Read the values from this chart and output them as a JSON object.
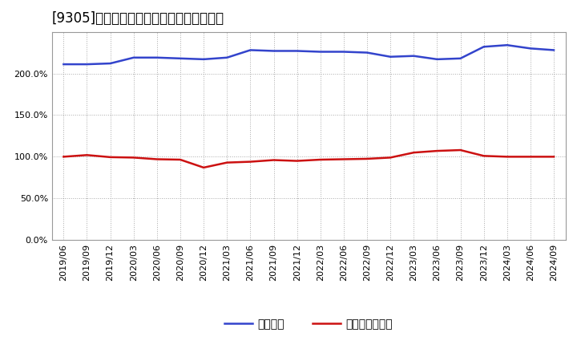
{
  "title": "[9305]　固定比率、固定長期適合率の推移",
  "x_labels": [
    "2019/06",
    "2019/09",
    "2019/12",
    "2020/03",
    "2020/06",
    "2020/09",
    "2020/12",
    "2021/03",
    "2021/06",
    "2021/09",
    "2021/12",
    "2022/03",
    "2022/06",
    "2022/09",
    "2022/12",
    "2023/03",
    "2023/06",
    "2023/09",
    "2023/12",
    "2024/03",
    "2024/06",
    "2024/09"
  ],
  "fixed_ratio": [
    211.0,
    211.0,
    212.0,
    219.0,
    219.0,
    218.0,
    217.0,
    219.0,
    228.0,
    227.0,
    227.0,
    226.0,
    226.0,
    225.0,
    220.0,
    221.0,
    217.0,
    218.0,
    232.0,
    234.0,
    230.0,
    228.0
  ],
  "fixed_long_ratio": [
    100.0,
    102.0,
    99.5,
    99.0,
    97.0,
    96.5,
    87.0,
    93.0,
    94.0,
    96.0,
    95.0,
    96.5,
    97.0,
    97.5,
    99.0,
    105.0,
    107.0,
    108.0,
    101.0,
    100.0,
    100.0,
    100.0
  ],
  "blue_color": "#3344cc",
  "red_color": "#cc1111",
  "bg_color": "#ffffff",
  "plot_bg_color": "#ffffff",
  "grid_color": "#aaaaaa",
  "legend_blue": "固定比率",
  "legend_red": "固定長期適合率",
  "ylim": [
    0,
    250
  ],
  "yticks": [
    0,
    50,
    100,
    150,
    200
  ],
  "title_fontsize": 12,
  "tick_fontsize": 8,
  "legend_fontsize": 10
}
